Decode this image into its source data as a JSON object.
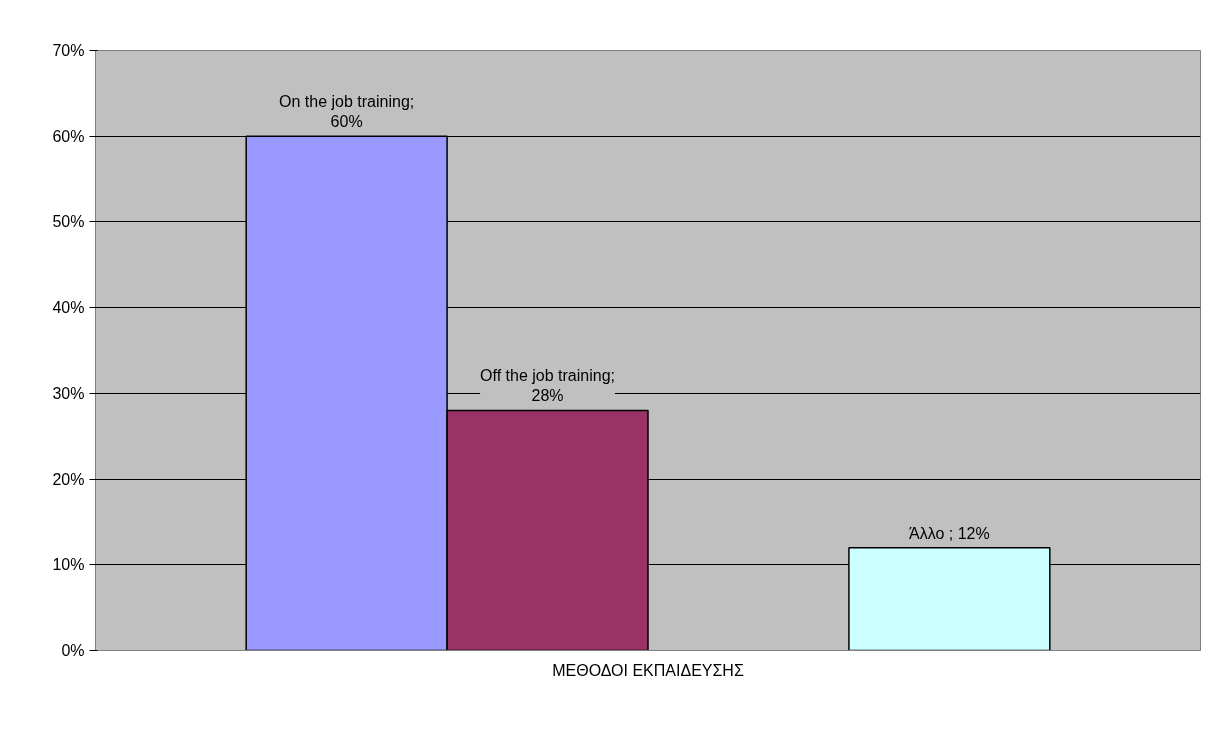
{
  "chart_data": {
    "type": "bar",
    "categories": [
      "ΜΕΘΟΔΟΙ ΕΚΠΑΙΔΕΥΣΗΣ"
    ],
    "series": [
      {
        "color": "#9999ff",
        "values": [
          60
        ],
        "value_labels": [
          "On the job training; 60%"
        ]
      },
      {
        "color": "#993366",
        "values": [
          28
        ],
        "value_labels": [
          "Off the job training; 28%"
        ]
      },
      {
        "values": [
          null
        ]
      },
      {
        "color": "#ccffff",
        "values": [
          12
        ],
        "value_labels": [
          "Άλλο ; 12%"
        ]
      }
    ],
    "ylim": [
      0,
      70
    ],
    "yticks": [
      {
        "value": 0,
        "label": "0%"
      },
      {
        "value": 10,
        "label": "10%"
      },
      {
        "value": 20,
        "label": "20%"
      },
      {
        "value": 30,
        "label": "30%"
      },
      {
        "value": 40,
        "label": "40%"
      },
      {
        "value": 50,
        "label": "50%"
      },
      {
        "value": 60,
        "label": "60%"
      },
      {
        "value": 70,
        "label": "70%"
      }
    ],
    "grid": "y"
  }
}
